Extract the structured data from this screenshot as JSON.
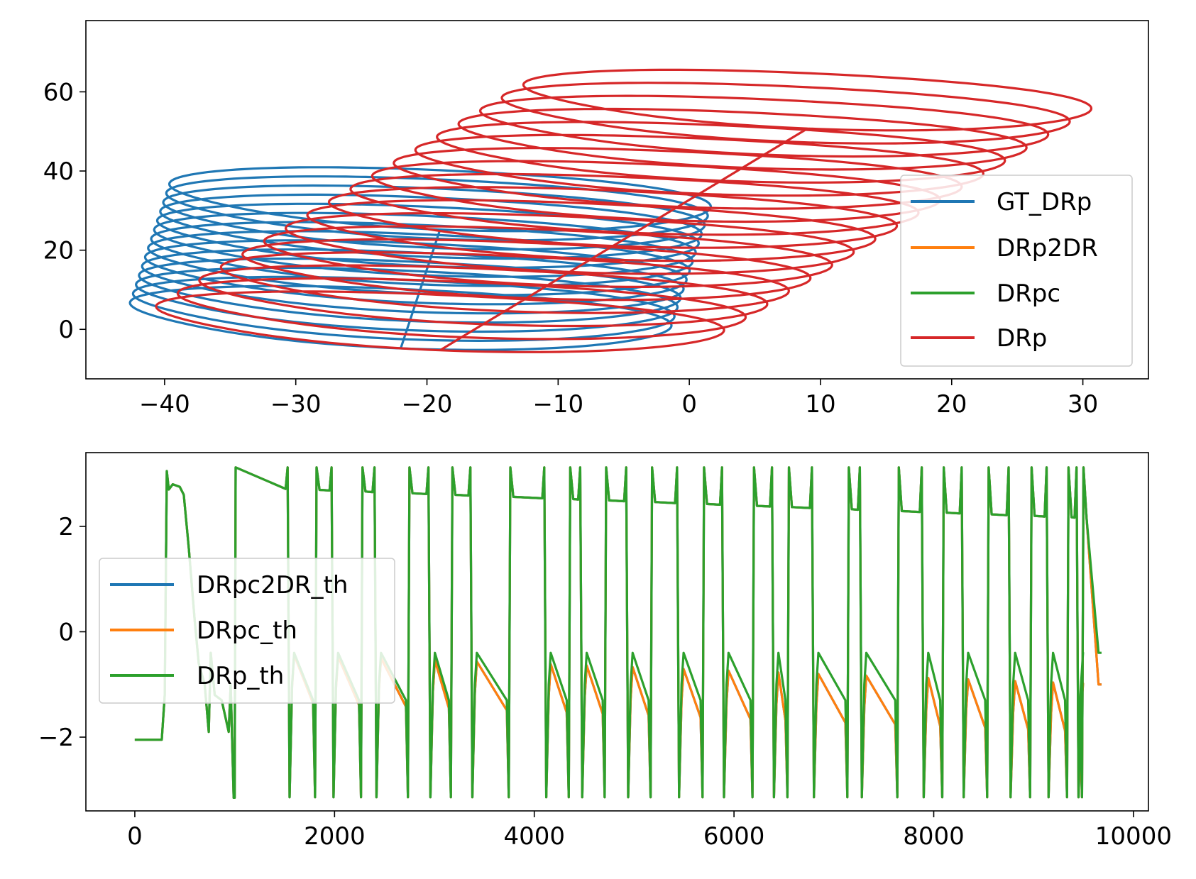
{
  "chart_data": [
    {
      "type": "line",
      "title": "",
      "xlabel": "",
      "ylabel": "",
      "xlim": [
        -46,
        35
      ],
      "ylim": [
        -12.5,
        78
      ],
      "xticks": [
        -40,
        -30,
        -20,
        -10,
        0,
        10,
        20,
        30
      ],
      "yticks": [
        0,
        20,
        40,
        60
      ],
      "xtick_labels": [
        "−40",
        "−30",
        "−20",
        "−10",
        "0",
        "10",
        "20",
        "30"
      ],
      "ytick_labels": [
        "0",
        "20",
        "40",
        "60"
      ],
      "grid": false,
      "legend_position": "lower-right",
      "series": [
        {
          "name": "GT_DRp",
          "color": "#1f77b4",
          "loops": {
            "count": 14,
            "start_center": [
              -22,
              3
            ],
            "end_center": [
              -19,
              33
            ],
            "rx": 20.5,
            "ry": 7.5,
            "tilt": -0.14
          }
        },
        {
          "name": "DRp2DR",
          "color": "#ff7f0e",
          "loops": null
        },
        {
          "name": "DRpc",
          "color": "#2ca02c",
          "loops": null
        },
        {
          "name": "DRp",
          "color": "#d62728",
          "loops": {
            "count": 18,
            "start_center": [
              -19,
              2
            ],
            "end_center": [
              9,
              58
            ],
            "rx": 21.5,
            "ry": 7.0,
            "tilt": -0.14
          }
        }
      ]
    },
    {
      "type": "line",
      "title": "",
      "xlabel": "",
      "ylabel": "",
      "xlim": [
        -490,
        10150
      ],
      "ylim": [
        -3.4,
        3.4
      ],
      "xticks": [
        0,
        2000,
        4000,
        6000,
        8000,
        10000
      ],
      "yticks": [
        -2,
        0,
        2
      ],
      "xtick_labels": [
        "0",
        "2000",
        "4000",
        "6000",
        "8000",
        "10000"
      ],
      "ytick_labels": [
        "−2",
        "0",
        "2"
      ],
      "grid": false,
      "legend_position": "center-left",
      "x_end": 9680,
      "series": [
        {
          "name": "DRpc2DR_th",
          "color": "#1f77b4"
        },
        {
          "name": "DRpc_th",
          "color": "#ff7f0e"
        },
        {
          "name": "DRp_th",
          "color": "#2ca02c"
        }
      ],
      "initial_segment": [
        [
          0,
          -2.05
        ],
        [
          270,
          -2.05
        ],
        [
          300,
          -1.2
        ],
        [
          320,
          3.05
        ],
        [
          340,
          2.7
        ],
        [
          380,
          2.8
        ],
        [
          450,
          2.75
        ],
        [
          490,
          2.6
        ],
        [
          540,
          1.6
        ],
        [
          600,
          0.2
        ],
        [
          640,
          -0.6
        ],
        [
          700,
          -1.0
        ],
        [
          740,
          -1.9
        ],
        [
          760,
          -0.4
        ],
        [
          800,
          -1.2
        ],
        [
          870,
          -1.3
        ],
        [
          940,
          -1.9
        ],
        [
          960,
          -1.0
        ],
        [
          990,
          -3.15
        ]
      ],
      "switch_times": [
        1550,
        1820,
        1990,
        2280,
        2420,
        2750,
        2960,
        3180,
        3380,
        3760,
        4120,
        4360,
        4480,
        4720,
        4940,
        5180,
        5450,
        5700,
        5900,
        6200,
        6400,
        6550,
        6800,
        7150,
        7280,
        7650,
        7900,
        8100,
        8300,
        8550,
        8770,
        8980,
        9150,
        9350,
        9450,
        9500
      ],
      "upper_plateau": {
        "start": 2.75,
        "end": 2.15
      },
      "lower_plateau_DRp": -0.4,
      "lower_plateau_DRpc": {
        "start": -0.4,
        "end": -1.0
      }
    }
  ]
}
